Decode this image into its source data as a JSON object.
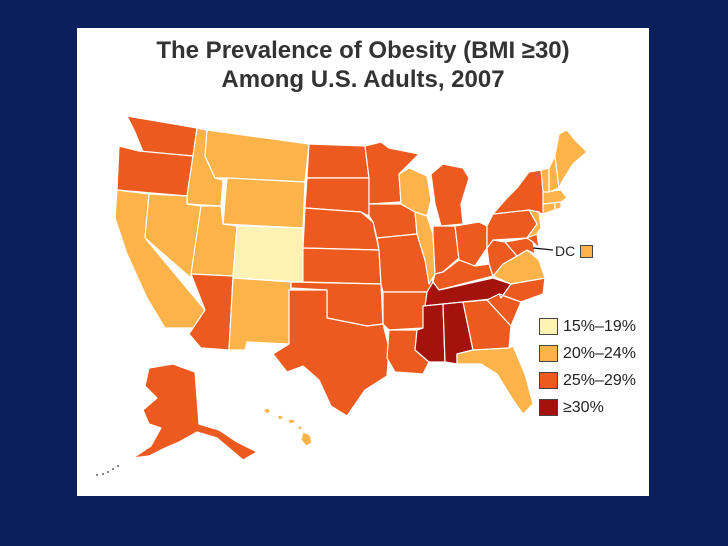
{
  "title": {
    "line1": "The Prevalence of Obesity (BMI ≥30)",
    "line2": "Among U.S. Adults, 2007"
  },
  "colors": {
    "slide_background": "#0a1f5c",
    "panel_background": "#ffffff",
    "bin_15_19": "#fff2b3",
    "bin_20_24": "#fcb34a",
    "bin_25_29": "#ec5a1f",
    "bin_30_plus": "#a3120c",
    "border": "#ffffff"
  },
  "legend": [
    {
      "label": "15%–19%",
      "bin": "bin_15_19"
    },
    {
      "label": "20%–24%",
      "bin": "bin_20_24"
    },
    {
      "label": "25%–29%",
      "bin": "bin_25_29"
    },
    {
      "label": "≥30%",
      "bin": "bin_30_plus"
    }
  ],
  "dc": {
    "label": "DC",
    "bin": "bin_20_24"
  },
  "states": {
    "WA": "bin_25_29",
    "OR": "bin_25_29",
    "CA": "bin_20_24",
    "ID": "bin_20_24",
    "NV": "bin_20_24",
    "MT": "bin_20_24",
    "WY": "bin_20_24",
    "UT": "bin_20_24",
    "CO": "bin_15_19",
    "AZ": "bin_25_29",
    "NM": "bin_20_24",
    "ND": "bin_25_29",
    "SD": "bin_25_29",
    "NE": "bin_25_29",
    "KS": "bin_25_29",
    "OK": "bin_25_29",
    "TX": "bin_25_29",
    "MN": "bin_25_29",
    "IA": "bin_25_29",
    "MO": "bin_25_29",
    "AR": "bin_25_29",
    "LA": "bin_25_29",
    "WI": "bin_20_24",
    "IL": "bin_20_24",
    "MI": "bin_25_29",
    "IN": "bin_25_29",
    "OH": "bin_25_29",
    "KY": "bin_25_29",
    "TN": "bin_30_plus",
    "MS": "bin_30_plus",
    "AL": "bin_30_plus",
    "GA": "bin_25_29",
    "FL": "bin_20_24",
    "SC": "bin_25_29",
    "NC": "bin_25_29",
    "VA": "bin_20_24",
    "WV": "bin_25_29",
    "PA": "bin_25_29",
    "NY": "bin_25_29",
    "VT": "bin_20_24",
    "NH": "bin_20_24",
    "ME": "bin_20_24",
    "MA": "bin_20_24",
    "CT": "bin_20_24",
    "RI": "bin_20_24",
    "NJ": "bin_20_24",
    "DE": "bin_25_29",
    "MD": "bin_25_29",
    "AK": "bin_25_29",
    "HI": "bin_20_24"
  }
}
